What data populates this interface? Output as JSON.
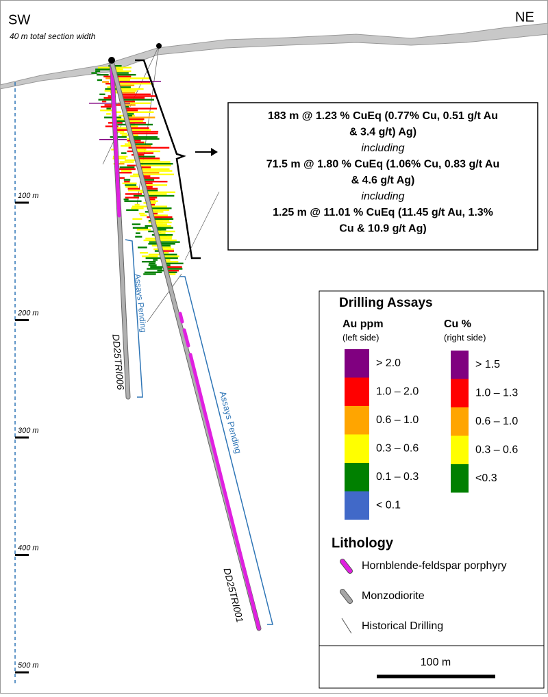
{
  "header": {
    "left": "SW",
    "right": "NE",
    "subtitle": "40 m total section width"
  },
  "depth_scale": {
    "labels": [
      "100 m",
      "200 m",
      "300 m",
      "400 m",
      "500 m"
    ]
  },
  "holes": [
    {
      "name": "DD25TRI006",
      "status": "Assays Pending"
    },
    {
      "name": "DD25TRI001",
      "status": "Assays Pending"
    }
  ],
  "callout": {
    "lines": [
      {
        "text": "183 m @ 1.23 % CuEq (0.77% Cu, 0.51 g/t Au",
        "style": "bold"
      },
      {
        "text": "& 3.4 g/t) Ag)",
        "style": "bold"
      },
      {
        "text": "including",
        "style": "italic"
      },
      {
        "text": "71.5 m @ 1.80 % CuEq  (1.06% Cu, 0.83 g/t Au",
        "style": "bold"
      },
      {
        "text": "& 4.6 g/t Ag)",
        "style": "bold"
      },
      {
        "text": "including",
        "style": "italic"
      },
      {
        "text": "1.25 m @ 11.01 % CuEq (11.45 g/t Au, 1.3%",
        "style": "bold"
      },
      {
        "text": "Cu & 10.9 g/t Ag)",
        "style": "bold"
      }
    ]
  },
  "legend": {
    "title": "Drilling Assays",
    "au": {
      "title": "Au ppm",
      "note": "(left side)",
      "classes": [
        {
          "label": "> 2.0",
          "color": "#800080"
        },
        {
          "label": "1.0 – 2.0",
          "color": "#ff0000"
        },
        {
          "label": "0.6 – 1.0",
          "color": "#ffa500"
        },
        {
          "label": "0.3 – 0.6",
          "color": "#ffff00"
        },
        {
          "label": "0.1 – 0.3",
          "color": "#008000"
        },
        {
          "label": "< 0.1",
          "color": "#4169c8"
        }
      ]
    },
    "cu": {
      "title": "Cu %",
      "note": "(right side)",
      "classes": [
        {
          "label": "> 1.5",
          "color": "#800080"
        },
        {
          "label": "1.0 – 1.3",
          "color": "#ff0000"
        },
        {
          "label": "0.6 – 1.0",
          "color": "#ffa500"
        },
        {
          "label": "0.3 – 0.6",
          "color": "#ffff00"
        },
        {
          "label": "<0.3",
          "color": "#008000"
        }
      ]
    },
    "lithology": {
      "title": "Lithology",
      "items": [
        {
          "label": "Hornblende-feldspar porphyry",
          "color": "#e020e0"
        },
        {
          "label": "Monzodiorite",
          "color": "#a6a6a6"
        },
        {
          "label": "Historical Drilling",
          "color": "#555555"
        }
      ]
    }
  },
  "scale_bar": {
    "label": "100 m"
  }
}
